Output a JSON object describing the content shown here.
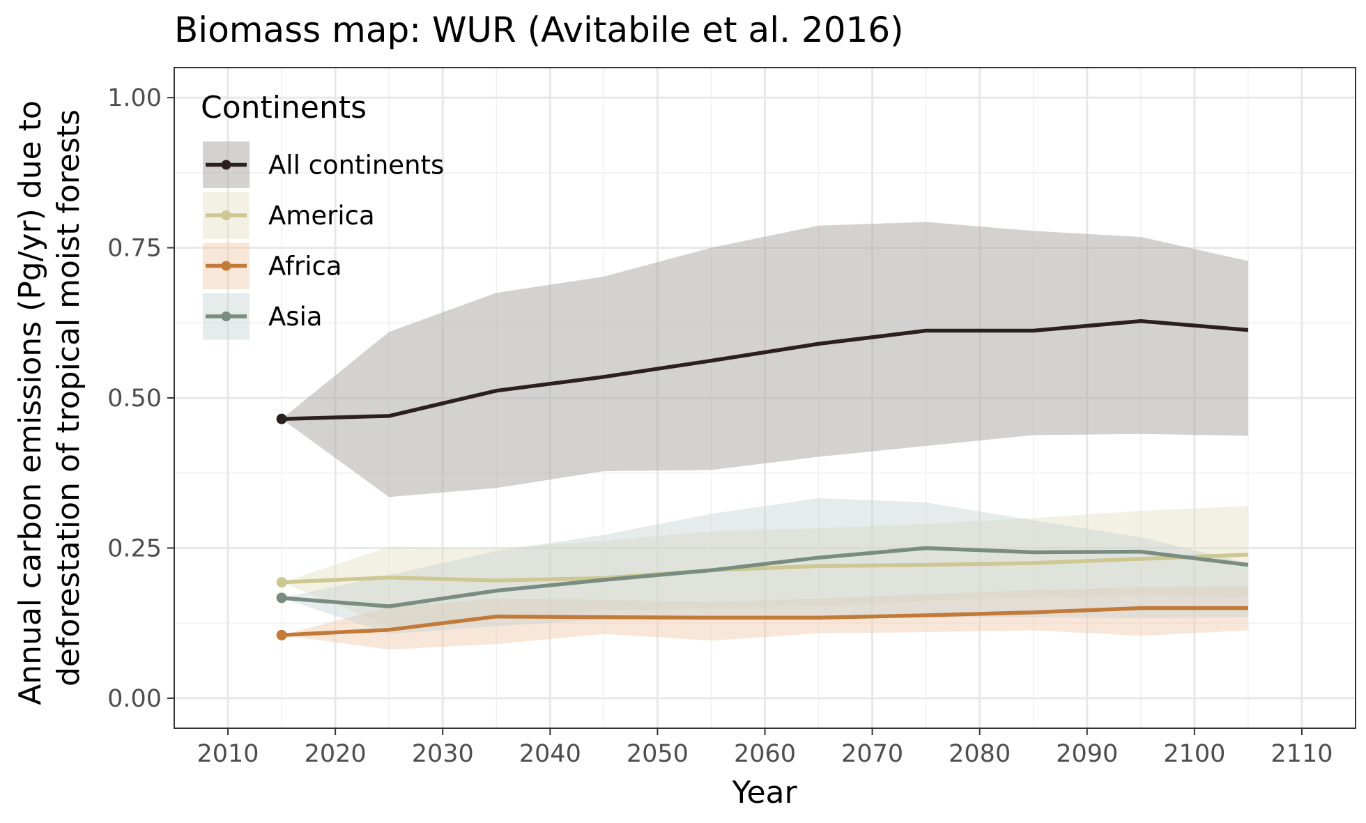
{
  "chart_data": {
    "type": "line",
    "title": "Biomass map: WUR (Avitabile et al. 2016)",
    "xlabel": "Year",
    "ylabel_lines": [
      "Annual carbon emissions (Pg/yr) due to",
      "deforestation of tropical moist forests"
    ],
    "xlim": [
      2005,
      2115
    ],
    "ylim": [
      -0.05,
      1.05
    ],
    "x_ticks": [
      2010,
      2020,
      2030,
      2040,
      2050,
      2060,
      2070,
      2080,
      2090,
      2100,
      2110
    ],
    "y_ticks": [
      0.0,
      0.25,
      0.5,
      0.75,
      1.0
    ],
    "y_tick_labels": [
      "0.00",
      "0.25",
      "0.50",
      "0.75",
      "1.00"
    ],
    "grid": true,
    "legend": {
      "title": "Continents",
      "position": "top-left"
    },
    "x": [
      2015,
      2025,
      2035,
      2045,
      2055,
      2065,
      2075,
      2085,
      2095,
      2105
    ],
    "series": [
      {
        "name": "All continents",
        "color": "#2b1f1f",
        "band_color": "#a8a6a4",
        "band_opacity": 0.5,
        "values": [
          0.465,
          0.47,
          0.512,
          0.535,
          0.562,
          0.59,
          0.612,
          0.612,
          0.628,
          0.613
        ],
        "lower": [
          0.465,
          0.335,
          0.35,
          0.378,
          0.38,
          0.402,
          0.42,
          0.438,
          0.44,
          0.437
        ],
        "upper": [
          0.465,
          0.61,
          0.675,
          0.702,
          0.75,
          0.787,
          0.793,
          0.778,
          0.768,
          0.728
        ]
      },
      {
        "name": "America",
        "color": "#cdc791",
        "band_color": "#e4dfc4",
        "band_opacity": 0.45,
        "values": [
          0.193,
          0.201,
          0.196,
          0.2,
          0.213,
          0.22,
          0.222,
          0.225,
          0.232,
          0.239
        ],
        "lower": [
          0.193,
          0.12,
          0.133,
          0.146,
          0.15,
          0.153,
          0.162,
          0.168,
          0.172,
          0.169
        ],
        "upper": [
          0.193,
          0.252,
          0.25,
          0.262,
          0.278,
          0.283,
          0.29,
          0.3,
          0.312,
          0.32
        ]
      },
      {
        "name": "Africa",
        "color": "#c27a38",
        "band_color": "#efc8a8",
        "band_opacity": 0.45,
        "values": [
          0.105,
          0.114,
          0.136,
          0.135,
          0.134,
          0.134,
          0.138,
          0.143,
          0.15,
          0.15
        ],
        "lower": [
          0.105,
          0.081,
          0.09,
          0.107,
          0.096,
          0.108,
          0.11,
          0.113,
          0.104,
          0.113
        ],
        "upper": [
          0.105,
          0.152,
          0.166,
          0.164,
          0.16,
          0.166,
          0.173,
          0.18,
          0.185,
          0.187
        ]
      },
      {
        "name": "Asia",
        "color": "#798c82",
        "band_color": "#c8d3d3",
        "band_opacity": 0.45,
        "values": [
          0.167,
          0.153,
          0.179,
          0.197,
          0.213,
          0.234,
          0.25,
          0.243,
          0.244,
          0.222
        ],
        "lower": [
          0.167,
          0.107,
          0.12,
          0.131,
          0.132,
          0.134,
          0.135,
          0.135,
          0.133,
          0.135
        ],
        "upper": [
          0.167,
          0.205,
          0.245,
          0.272,
          0.307,
          0.333,
          0.326,
          0.296,
          0.268,
          0.225
        ]
      }
    ]
  }
}
